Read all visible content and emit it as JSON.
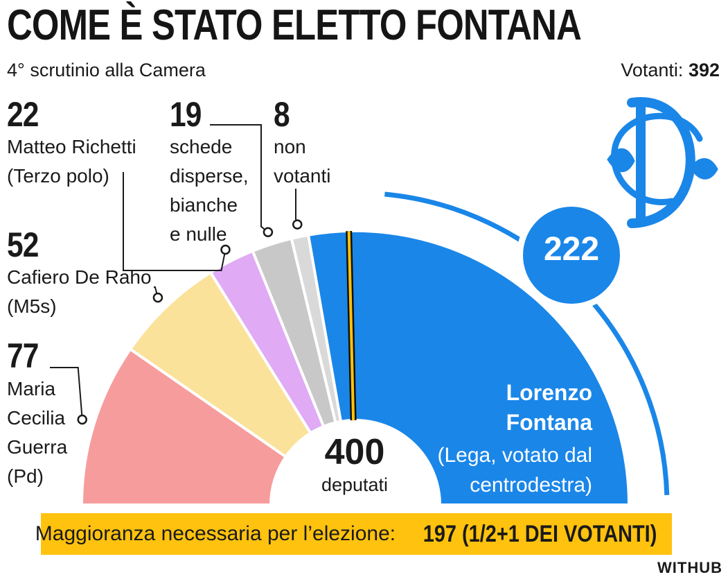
{
  "title": "COME È STATO ELETTO FONTANA",
  "subtitle": "4° scrutinio alla Camera",
  "voters": {
    "label": "Votanti:",
    "value": "392"
  },
  "total": {
    "value": "400",
    "label": "deputati"
  },
  "winner": {
    "votes": "222",
    "name_lines": [
      "Lorenzo",
      "Fontana"
    ],
    "party_lines": [
      "(Lega, votato dal",
      "centrodestra)"
    ]
  },
  "others": [
    {
      "value": "77",
      "lines": [
        "Maria",
        "Cecilia",
        "Guerra",
        "(Pd)"
      ]
    },
    {
      "value": "52",
      "lines": [
        "Cafiero De Raho",
        "(M5s)"
      ]
    },
    {
      "value": "22",
      "lines": [
        "Matteo Richetti",
        "(Terzo polo)"
      ]
    },
    {
      "value": "19",
      "lines": [
        "schede",
        "disperse,",
        "bianche",
        "e nulle"
      ]
    },
    {
      "value": "8",
      "lines": [
        "non",
        "votanti"
      ]
    }
  ],
  "footer": {
    "text": "Maggioranza necessaria per l’elezione:",
    "strong": "197 (1/2+1 DEI VOTANTI)"
  },
  "brand": "WITHUB",
  "colors": {
    "winner": "#1a86e8",
    "guerra": "#f79c9c",
    "cafiero": "#fbe29a",
    "richetti": "#e0aaf5",
    "schede": "#c8c8c8",
    "nonvotanti": "#d9d9d9",
    "footer": "#ffc20e",
    "majority_line": "#ffc20e"
  },
  "chart_data": {
    "type": "pie",
    "shape": "half-donut",
    "total": 400,
    "majority_threshold": 197,
    "categories": [
      "Lorenzo Fontana",
      "Maria Cecilia Guerra",
      "Cafiero De Raho",
      "Matteo Richetti",
      "schede disperse, bianche e nulle",
      "non votanti"
    ],
    "values": [
      222,
      77,
      52,
      22,
      19,
      8
    ]
  }
}
